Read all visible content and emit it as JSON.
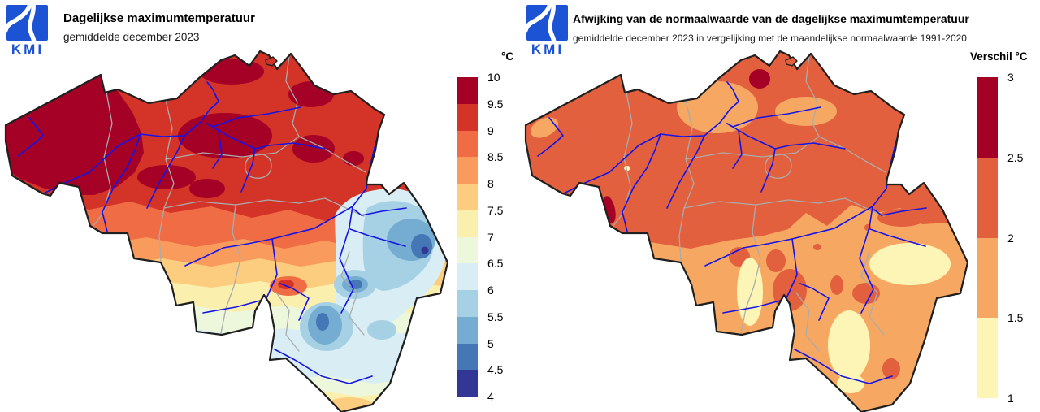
{
  "map_style": {
    "river_color": "#1414E6",
    "province_border_color": "#ABABAB",
    "country_border_color": "#1F1F1F",
    "background": "#FFFFFF",
    "logo_blue": "#1C52D4"
  },
  "panels": [
    {
      "id": "left",
      "logo_text": "KMI",
      "title": "Dagelijkse maximumtemperatuur",
      "subtitle": "gemiddelde december 2023",
      "legend": {
        "title": "°C",
        "tick_labels": [
          "10",
          "9.5",
          "9",
          "8.5",
          "8",
          "7.5",
          "7",
          "6.5",
          "6",
          "5.5",
          "5",
          "4.5",
          "4"
        ],
        "colors": [
          "#A50026",
          "#D43328",
          "#EF6C44",
          "#F99B5D",
          "#FCCD7E",
          "#FBEFAE",
          "#EDF7DC",
          "#D9EDF4",
          "#A6D0E4",
          "#74ADD1",
          "#4576B5",
          "#323695"
        ]
      }
    },
    {
      "id": "right",
      "logo_text": "KMI",
      "title": "Afwijking van de normaalwaarde van de dagelijkse maximumtemperatuur",
      "subtitle": "gemiddelde december 2023 in vergelijking met de maandelijkse normaalwaarde 1991-2020",
      "legend": {
        "title": "Verschil °C",
        "tick_labels": [
          "3",
          "2.5",
          "2",
          "1.5",
          "1"
        ],
        "colors": [
          "#A50026",
          "#E2603D",
          "#F6A863",
          "#FCF5B5"
        ]
      }
    }
  ],
  "map_data": {
    "left": {
      "unit": "°C",
      "scale_range": [
        4,
        10
      ],
      "scale_step": 0.5,
      "summary": "Warmest (9.5–10 °C) in the northwest near the coast; 9–9.5 °C over most of the north and centre; values decrease southeastward through orange and yellow bands; coldest (4–5.5 °C) in the eastern High Fens and the southern Ardennes."
    },
    "right": {
      "unit": "°C verschil",
      "scale_range": [
        1,
        3
      ],
      "scale_step": 0.5,
      "summary": "Mostly +2 to +2.5 °C above normal over the north and centre; +1.5 to +2 °C over the south; small spots of +2.5 to +3 °C at the northern border and on the western border; patches of +1 to +1.5 °C in the south and east."
    }
  }
}
